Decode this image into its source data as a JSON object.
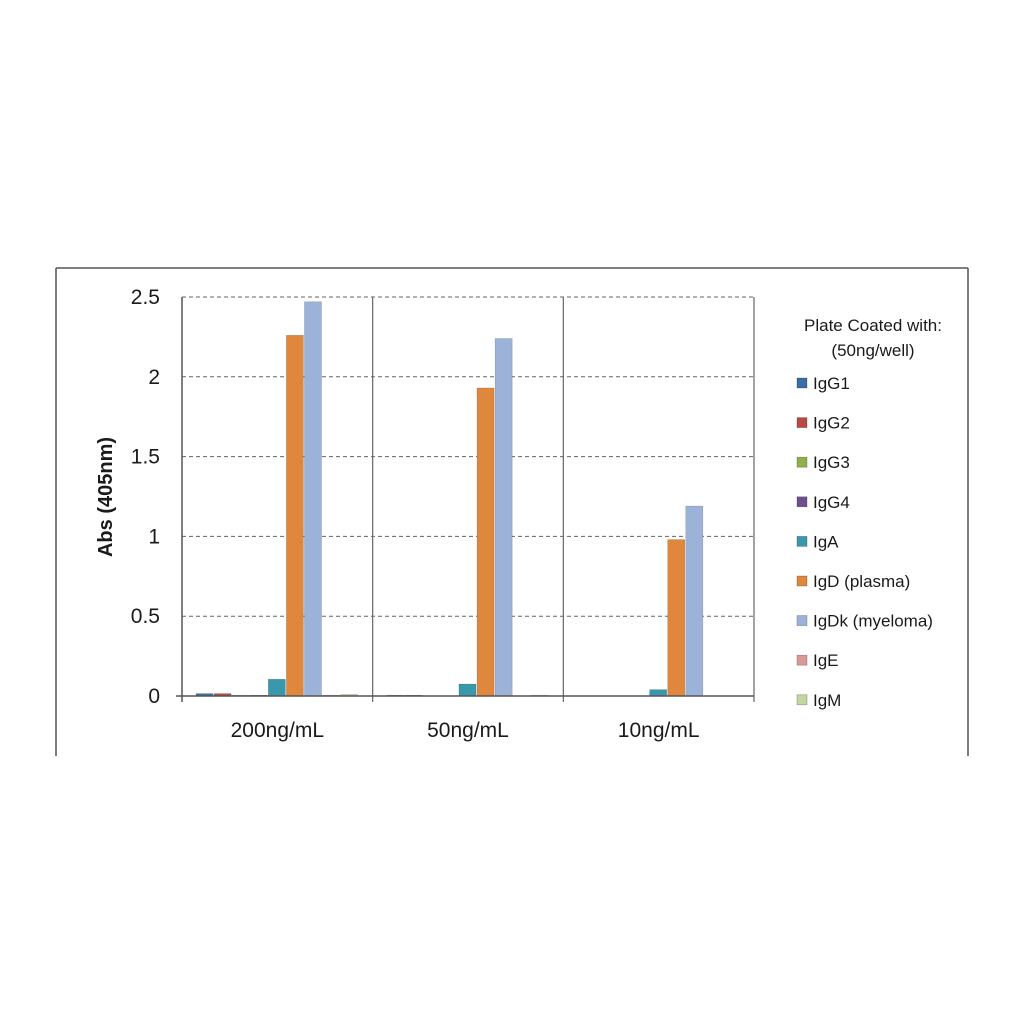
{
  "chart_data": {
    "type": "bar",
    "ylabel": "Abs (405nm)",
    "ylim": [
      0,
      2.5
    ],
    "yticks": [
      "0",
      "0.5",
      "1",
      "1.5",
      "2",
      "2.5"
    ],
    "grid": true,
    "legend_position": "right",
    "categories": [
      "200ng/mL",
      "50ng/mL",
      "10ng/mL"
    ],
    "legend_title": [
      "Plate Coated with:",
      "(50ng/well)"
    ],
    "series": [
      {
        "name": "IgG1",
        "color": "#3a6ea5",
        "values": [
          0.015,
          0.005,
          0.0
        ]
      },
      {
        "name": "IgG2",
        "color": "#b84a45",
        "values": [
          0.015,
          0.005,
          0.0
        ]
      },
      {
        "name": "IgG3",
        "color": "#8fb04a",
        "values": [
          0.005,
          0.002,
          0.0
        ]
      },
      {
        "name": "IgG4",
        "color": "#6e4f8e",
        "values": [
          0.005,
          0.002,
          0.0
        ]
      },
      {
        "name": "IgA",
        "color": "#3a98ad",
        "values": [
          0.105,
          0.075,
          0.04
        ]
      },
      {
        "name": "IgD (plasma)",
        "color": "#e0873e",
        "values": [
          2.26,
          1.93,
          0.98
        ]
      },
      {
        "name": "IgDk (myeloma)",
        "color": "#9cb2d8",
        "values": [
          2.47,
          2.24,
          1.19
        ]
      },
      {
        "name": "IgE",
        "color": "#d99a96",
        "values": [
          0.005,
          0.002,
          0.0
        ]
      },
      {
        "name": "IgM",
        "color": "#c3d6a0",
        "values": [
          0.01,
          0.005,
          0.0
        ]
      }
    ]
  }
}
